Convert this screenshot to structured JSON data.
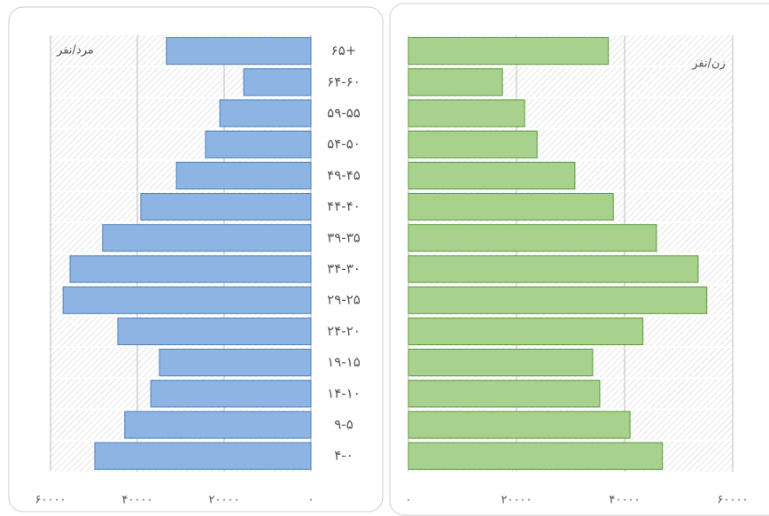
{
  "chart_data": {
    "type": "pyramid",
    "categories": [
      "۶۵+",
      "۶۴-۶۰",
      "۵۹-۵۵",
      "۵۴-۵۰",
      "۴۹-۴۵",
      "۴۴-۴۰",
      "۳۹-۳۵",
      "۳۴-۳۰",
      "۲۹-۲۵",
      "۲۴-۲۰",
      "۱۹-۱۵",
      "۱۴-۱۰",
      "۹-۵",
      "۴-۰"
    ],
    "series": [
      {
        "name": "مرد/نفر",
        "color": "#8db4e2",
        "x_reversed": true,
        "values": [
          33300,
          15500,
          21000,
          24300,
          31000,
          39200,
          48000,
          55500,
          57100,
          44500,
          34900,
          36900,
          42900,
          49800
        ],
        "xlim": [
          0,
          60000
        ],
        "xticks": [
          {
            "value": 0,
            "label": "۰"
          },
          {
            "value": 20000,
            "label": "۲۰۰۰۰"
          },
          {
            "value": 40000,
            "label": "۴۰۰۰۰"
          },
          {
            "value": 60000,
            "label": "۶۰۰۰۰"
          }
        ]
      },
      {
        "name": "زن/نفر",
        "color": "#a9d18e",
        "x_reversed": false,
        "values": [
          37000,
          17400,
          21500,
          23800,
          30800,
          37900,
          45900,
          53600,
          55200,
          43400,
          34100,
          35400,
          41000,
          47000
        ],
        "xlim": [
          0,
          60000
        ],
        "xticks": [
          {
            "value": 0,
            "label": "۰"
          },
          {
            "value": 20000,
            "label": "۲۰۰۰۰"
          },
          {
            "value": 40000,
            "label": "۴۰۰۰۰"
          },
          {
            "value": 60000,
            "label": "۶۰۰۰۰"
          }
        ]
      }
    ]
  }
}
